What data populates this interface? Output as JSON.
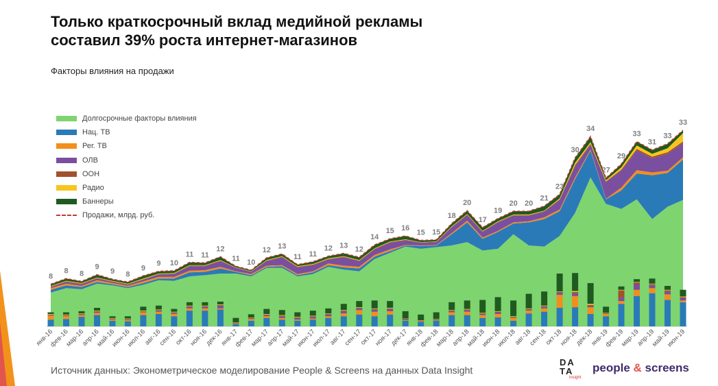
{
  "title": "Только краткосрочный вклад медийной рекламы\nсоставил 39% роста интернет-магазинов",
  "subtitle": "Факторы влияния на продажи",
  "source": "Источник данных: Эконометрическое моделирование People & Screens на данных Data Insight",
  "logos": {
    "di_line1": "DA",
    "di_line2": "TA",
    "di_sub": "insight",
    "ps_a": "people",
    "ps_amp": "&",
    "ps_b": "screens"
  },
  "colors": {
    "long": "#7ed46f",
    "tv": "#2a7ab8",
    "reg": "#f28e1c",
    "olv": "#7a4fa0",
    "ooh": "#a0522d",
    "radio": "#f7c51b",
    "banners": "#1f5a20",
    "sales": "#c0392b",
    "label": "#7f7f7f",
    "accent_corner": "#f3921b"
  },
  "chart_data": {
    "type": "area",
    "stacked": true,
    "x_axis": "month",
    "categories": [
      "янв-16",
      "фев-16",
      "мар-16",
      "апр-16",
      "май-16",
      "июн-16",
      "июл-16",
      "авг-16",
      "сен-16",
      "окт-16",
      "ноя-16",
      "дек-16",
      "янв-17",
      "фев-17",
      "мар-17",
      "апр-17",
      "май-17",
      "июн-17",
      "июл-17",
      "авг-17",
      "сен-17",
      "окт-17",
      "ноя-17",
      "дек-17",
      "янв-18",
      "фев-18",
      "мар-18",
      "апр-18",
      "май-18",
      "июн-18",
      "июл-18",
      "авг-18",
      "сен-18",
      "окт-18",
      "ноя-18",
      "дек-18",
      "янв-19",
      "фев-19",
      "мар-19",
      "апр-19",
      "май-19",
      "июн-19"
    ],
    "legend": [
      "Долгосрочные факторы влияния",
      "Нац. ТВ",
      "Рег. ТВ",
      "ОЛВ",
      "ООН",
      "Радио",
      "Баннеры",
      "Продажи, млрд. руб."
    ],
    "series": [
      {
        "name": "Долгосрочные факторы влияния",
        "key": "long",
        "values": [
          6,
          6.8,
          6.6,
          7.6,
          7.3,
          6.8,
          7.4,
          8.2,
          8.1,
          8.9,
          9.1,
          9.4,
          9.4,
          8.9,
          10.4,
          10.4,
          8.9,
          9.3,
          10.6,
          10.1,
          9.8,
          12.0,
          13.1,
          14.2,
          13.8,
          14.1,
          14.4,
          15.0,
          13.5,
          13.8,
          16.4,
          14.4,
          14.2,
          16.1,
          20.2,
          26.5,
          21.8,
          20.9,
          22.6,
          19.1,
          21.3,
          22.5
        ]
      },
      {
        "name": "Нац. ТВ",
        "key": "tv",
        "values": [
          0.5,
          0.5,
          0.4,
          0.3,
          0.2,
          0.2,
          0.3,
          0.3,
          0.4,
          0.7,
          0.6,
          0.9,
          0.3,
          0.2,
          0.2,
          0.3,
          0.2,
          0.3,
          0.3,
          0.4,
          0.5,
          0.4,
          0.3,
          0.2,
          0.5,
          0.3,
          2.0,
          3.5,
          2.1,
          3.0,
          1.9,
          4.1,
          4.9,
          4.4,
          6.0,
          4.8,
          0.8,
          3.3,
          4.6,
          7.8,
          6.0,
          7.2
        ]
      },
      {
        "name": "Рег. ТВ",
        "key": "reg",
        "values": [
          0.3,
          0.3,
          0.2,
          0.3,
          0.2,
          0.2,
          0.3,
          0.3,
          0.3,
          0.3,
          0.3,
          0.3,
          0.1,
          0.2,
          0.2,
          0.2,
          0.2,
          0.2,
          0.3,
          0.3,
          0.3,
          0.3,
          0.3,
          0.1,
          0.1,
          0.1,
          0.2,
          0.3,
          0.2,
          0.2,
          0.2,
          0.2,
          0.3,
          0.3,
          0.3,
          0.2,
          0.1,
          0.5,
          0.6,
          0.5,
          0.4,
          0.4
        ]
      },
      {
        "name": "ОЛВ",
        "key": "olv",
        "values": [
          0.2,
          0.3,
          0.3,
          0.3,
          0.2,
          0.2,
          0.3,
          0.4,
          0.5,
          0.8,
          0.7,
          1.0,
          0.6,
          0.4,
          0.8,
          1.4,
          1.2,
          1.1,
          0.7,
          1.5,
          1.0,
          1.0,
          1.2,
          0.8,
          0.5,
          0.5,
          1.0,
          1.0,
          1.0,
          1.5,
          1.2,
          1.0,
          1.0,
          1.7,
          2.0,
          0.8,
          3.0,
          3.0,
          3.5,
          2.5,
          3.0,
          2.5
        ]
      },
      {
        "name": "ООН",
        "key": "ooh",
        "values": [
          0.1,
          0.1,
          0.1,
          0.1,
          0.1,
          0.1,
          0.1,
          0.1,
          0.1,
          0.1,
          0.1,
          0.1,
          0.05,
          0.05,
          0.1,
          0.1,
          0.1,
          0.1,
          0.1,
          0.1,
          0.1,
          0.1,
          0.1,
          0.1,
          0.05,
          0.05,
          0.1,
          0.1,
          0.1,
          0.1,
          0.1,
          0.1,
          0.1,
          0.1,
          0.2,
          0.2,
          0.1,
          0.2,
          0.3,
          0.3,
          0.3,
          0.3
        ]
      },
      {
        "name": "Радио",
        "key": "radio",
        "values": [
          0.1,
          0.1,
          0.1,
          0.1,
          0.1,
          0.1,
          0.1,
          0.1,
          0.1,
          0.1,
          0.1,
          0.1,
          0.05,
          0.05,
          0.1,
          0.1,
          0.1,
          0.1,
          0.1,
          0.1,
          0.1,
          0.1,
          0.1,
          0.1,
          0.05,
          0.05,
          0.1,
          0.1,
          0.1,
          0.1,
          0.1,
          0.1,
          0.1,
          0.2,
          0.4,
          0.3,
          0.2,
          0.4,
          0.6,
          0.5,
          0.7,
          1.5
        ]
      },
      {
        "name": "Баннеры",
        "key": "banners",
        "values": [
          0.3,
          0.4,
          0.3,
          0.5,
          0.3,
          0.3,
          0.5,
          0.4,
          0.4,
          0.5,
          0.4,
          0.6,
          0.2,
          0.2,
          0.4,
          0.4,
          0.3,
          0.4,
          0.4,
          0.5,
          0.5,
          0.6,
          0.5,
          0.6,
          0.3,
          0.3,
          0.5,
          0.6,
          0.6,
          0.5,
          0.6,
          0.6,
          0.8,
          0.7,
          0.9,
          1.0,
          0.4,
          0.6,
          0.7,
          0.7,
          0.8,
          0.5
        ]
      }
    ],
    "sales_labels": [
      "8",
      "8",
      "8",
      "9",
      "9",
      "8",
      "9",
      "9",
      "10",
      "11",
      "11",
      "12",
      "11",
      "10",
      "12",
      "13",
      "11",
      "11",
      "12",
      "13",
      "12",
      "14",
      "15",
      "16",
      "15",
      "15",
      "18",
      "20",
      "17",
      "19",
      "20",
      "20",
      "21",
      "23",
      "30",
      "34",
      "27",
      "29",
      "33",
      "31",
      "33",
      "33"
    ],
    "ylim": [
      0,
      36
    ],
    "bars": {
      "note": "short-term media contribution columns, same colors as series",
      "tv": [
        1.2,
        1.3,
        1.7,
        2.0,
        1.0,
        0.9,
        2.0,
        2.2,
        1.8,
        2.8,
        2.8,
        3.0,
        0.4,
        1.0,
        1.5,
        1.2,
        1.0,
        1.2,
        1.5,
        1.8,
        2.1,
        1.8,
        2.1,
        1.0,
        0.8,
        1.0,
        2.0,
        2.0,
        1.5,
        1.6,
        1.0,
        2.3,
        2.6,
        3.3,
        3.4,
        2.2,
        1.8,
        4.0,
        5.4,
        5.9,
        4.7,
        4.3
      ],
      "reg": [
        0.7,
        0.5,
        0.3,
        0.4,
        0.2,
        0.2,
        0.5,
        0.4,
        0.4,
        0.4,
        0.4,
        0.2,
        0.1,
        0.3,
        0.3,
        0.3,
        0.2,
        0.2,
        0.3,
        0.5,
        0.8,
        0.8,
        0.6,
        0.1,
        0.1,
        0.1,
        0.5,
        0.6,
        0.5,
        0.6,
        0.5,
        0.5,
        0.6,
        2.3,
        2.0,
        1.2,
        0.4,
        0.5,
        1.1,
        0.9,
        1.0,
        0.3
      ],
      "olv": [
        0.1,
        0.1,
        0.1,
        0.2,
        0.1,
        0.1,
        0.1,
        0.2,
        0.2,
        0.3,
        0.3,
        0.5,
        0.1,
        0.1,
        0.2,
        0.3,
        0.3,
        0.3,
        0.3,
        0.4,
        0.3,
        0.4,
        0.4,
        0.2,
        0.1,
        0.1,
        0.2,
        0.3,
        0.2,
        0.3,
        0.1,
        0.2,
        0.3,
        0.4,
        0.5,
        0.2,
        0.1,
        0.6,
        1.0,
        0.5,
        0.5,
        0.4
      ],
      "ooh": [
        0.1,
        0.1,
        0.1,
        0.1,
        0.1,
        0.1,
        0.1,
        0.1,
        0.1,
        0.1,
        0.1,
        0.1,
        0.05,
        0.1,
        0.1,
        0.1,
        0.1,
        0.1,
        0.1,
        0.1,
        0.1,
        0.1,
        0.1,
        0.05,
        0.05,
        0.05,
        0.1,
        0.1,
        0.1,
        0.1,
        0.1,
        0.1,
        0.1,
        0.1,
        0.2,
        0.2,
        0.05,
        1.3,
        0.3,
        0.2,
        0.2,
        0.2
      ],
      "radio": [
        0.1,
        0.1,
        0.1,
        0.1,
        0.1,
        0.1,
        0.1,
        0.1,
        0.1,
        0.1,
        0.1,
        0.1,
        0.05,
        0.05,
        0.1,
        0.1,
        0.1,
        0.1,
        0.1,
        0.1,
        0.1,
        0.1,
        0.1,
        0.05,
        0.05,
        0.05,
        0.1,
        0.1,
        0.1,
        0.1,
        0.1,
        0.1,
        0.1,
        0.1,
        0.2,
        0.2,
        0.05,
        0.1,
        0.1,
        0.1,
        0.1,
        0.1
      ],
      "banners": [
        0.3,
        0.4,
        0.4,
        0.5,
        0.3,
        0.4,
        0.7,
        0.7,
        0.5,
        0.6,
        0.6,
        0.5,
        0.8,
        0.6,
        0.9,
        0.9,
        0.8,
        0.9,
        0.9,
        1.1,
        1.1,
        1.4,
        1.2,
        1.3,
        1.0,
        1.2,
        1.4,
        1.5,
        2.3,
        2.5,
        2.8,
        2.6,
        2.5,
        3.2,
        3.2,
        3.7,
        1.1,
        0.6,
        0.5,
        0.9,
        0.7,
        1.2
      ]
    }
  }
}
